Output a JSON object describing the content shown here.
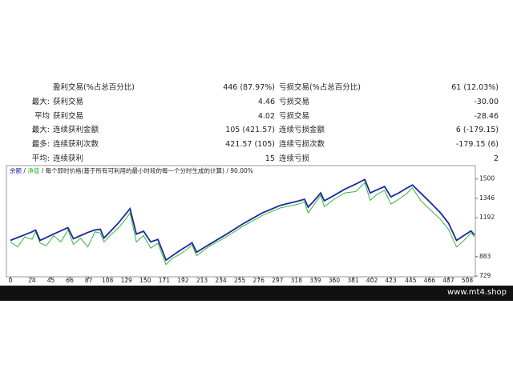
{
  "stats": {
    "rows": [
      {
        "name": "盈利交易(%占总百分比)",
        "value": "446 (87.97%)",
        "name2": "亏损交易(%占总百分比)",
        "value2": "61 (12.03%)"
      },
      {
        "label": "最大:",
        "name": "获利交易",
        "value": "4.46",
        "name2": "亏损交易",
        "value2": "-30.00"
      },
      {
        "label": "平均",
        "name": "获利交易",
        "value": "4.02",
        "name2": "亏损交易",
        "value2": "-28.46"
      },
      {
        "label": "最大:",
        "name": "连续获利金额",
        "value": "105 (421.57)",
        "name2": "连续亏损金额",
        "value2": "6 (-179.15)"
      },
      {
        "label": "最多:",
        "name": "连续获利次数",
        "value": "421.57 (105)",
        "name2": "连续亏损次数",
        "value2": "-179.15 (6)"
      },
      {
        "label": "平均:",
        "name": "连续获利",
        "value": "15",
        "name2": "连续亏损",
        "value2": "2"
      }
    ]
  },
  "chart_data": {
    "type": "line",
    "legend_separator": "/",
    "annotation": "每个即时价格(基于所有可利用的最小时段的每一个分时生成的计算) / 90.00%",
    "x": [
      0,
      8,
      16,
      24,
      28,
      33,
      40,
      48,
      56,
      64,
      70,
      78,
      86,
      94,
      100,
      104,
      112,
      120,
      128,
      133,
      140,
      148,
      156,
      164,
      173,
      180,
      188,
      196,
      202,
      207,
      220,
      240,
      260,
      280,
      300,
      320,
      327,
      331,
      338,
      345,
      349,
      360,
      372,
      384,
      394,
      400,
      408,
      416,
      423,
      432,
      440,
      447,
      456,
      466,
      478,
      487,
      496,
      504,
      512,
      516
    ],
    "series": [
      {
        "name": "余额",
        "color": "#1c2a9e",
        "values": [
          1012,
          1035,
          1057,
          1080,
          1094,
          1012,
          1035,
          1062,
          1088,
          1113,
          1025,
          1050,
          1075,
          1095,
          1100,
          1031,
          1090,
          1150,
          1220,
          1264,
          1062,
          1085,
          1000,
          1020,
          855,
          890,
          930,
          965,
          993,
          918,
          975,
          1060,
          1150,
          1230,
          1290,
          1325,
          1339,
          1276,
          1330,
          1389,
          1327,
          1370,
          1420,
          1460,
          1496,
          1389,
          1415,
          1440,
          1358,
          1390,
          1425,
          1452,
          1389,
          1320,
          1232,
          1150,
          1012,
          1050,
          1087,
          1056
        ]
      },
      {
        "name": "净值",
        "color": "#22b422",
        "values": [
          1000,
          960,
          1040,
          1020,
          1080,
          990,
          970,
          1050,
          1000,
          1095,
          980,
          1030,
          960,
          1080,
          1070,
          1000,
          1060,
          1110,
          1180,
          1230,
          1000,
          1050,
          950,
          990,
          820,
          870,
          900,
          940,
          975,
          890,
          960,
          1040,
          1130,
          1210,
          1270,
          1300,
          1320,
          1230,
          1300,
          1370,
          1280,
          1340,
          1390,
          1400,
          1470,
          1330,
          1380,
          1410,
          1300,
          1340,
          1380,
          1430,
          1330,
          1260,
          1180,
          1100,
          960,
          1010,
          1070,
          1040
        ]
      }
    ],
    "xlim": [
      0,
      516
    ],
    "xticks": [
      0,
      24,
      45,
      66,
      87,
      108,
      129,
      150,
      171,
      192,
      213,
      234,
      255,
      276,
      297,
      318,
      339,
      360,
      381,
      402,
      423,
      445,
      466,
      487,
      508
    ],
    "ylim": [
      729,
      1600
    ],
    "yticks": [
      729,
      883,
      1192,
      1346,
      1500
    ]
  },
  "footer": {
    "site": "www.mt4.shop"
  }
}
